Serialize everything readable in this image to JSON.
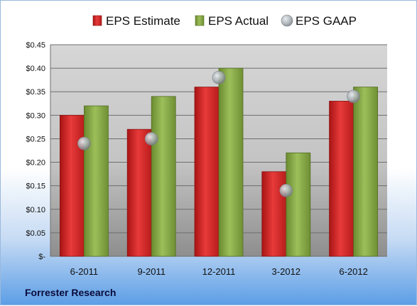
{
  "chart_data": {
    "type": "bar",
    "categories": [
      "6-2011",
      "9-2011",
      "12-2011",
      "3-2012",
      "6-2012"
    ],
    "series": [
      {
        "name": "EPS Estimate",
        "kind": "bar",
        "color": "#d42a2a",
        "values": [
          0.3,
          0.27,
          0.36,
          0.18,
          0.33
        ]
      },
      {
        "name": "EPS Actual",
        "kind": "bar",
        "color": "#8aab4a",
        "values": [
          0.32,
          0.34,
          0.4,
          0.22,
          0.36
        ]
      },
      {
        "name": "EPS GAAP",
        "kind": "scatter",
        "color": "#a8aeb4",
        "values": [
          0.24,
          0.25,
          0.38,
          0.14,
          0.34
        ]
      }
    ],
    "ylim": [
      0,
      0.45
    ],
    "yticks": [
      0,
      0.05,
      0.1,
      0.15,
      0.2,
      0.25,
      0.3,
      0.35,
      0.4,
      0.45
    ],
    "ytick_labels": [
      "$-",
      "$0.05",
      "$0.10",
      "$0.15",
      "$0.20",
      "$0.25",
      "$0.30",
      "$0.35",
      "$0.40",
      "$0.45"
    ],
    "grid": true,
    "legend_position": "top"
  },
  "source_label": "Forrester Research"
}
